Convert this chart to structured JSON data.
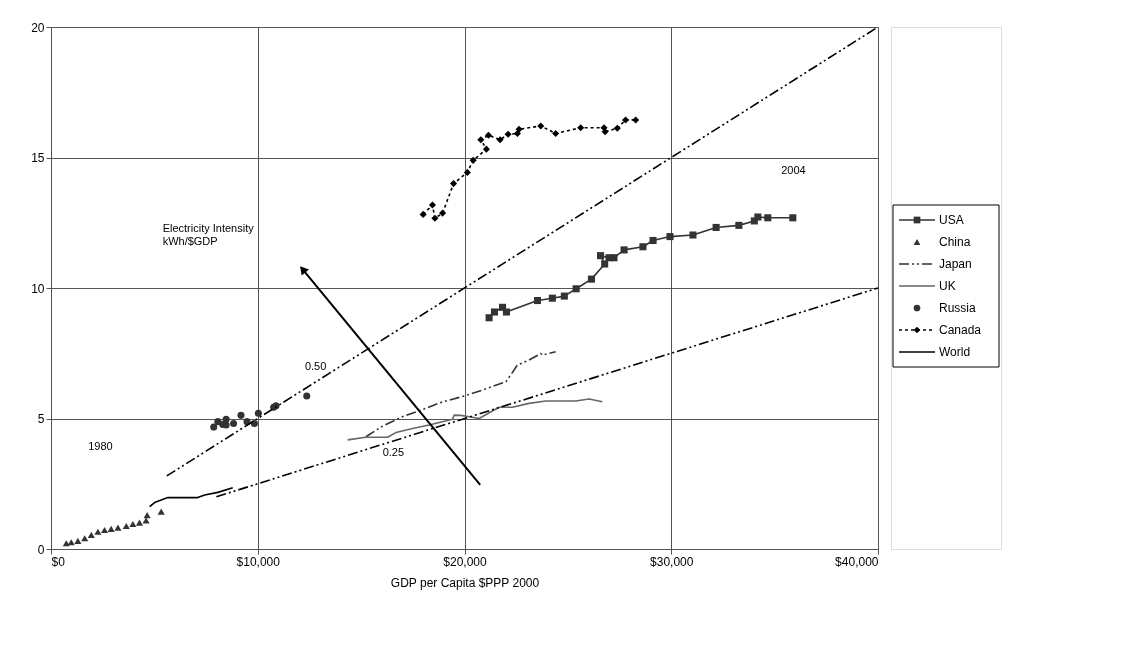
{
  "chart_data": {
    "type": "line",
    "xlabel": "GDP per Capita $PPP 2000",
    "xlim": [
      0,
      40000
    ],
    "ylim": [
      0,
      20
    ],
    "xticks": [
      {
        "value": 0,
        "label": "$0"
      },
      {
        "value": 10000,
        "label": "$10,000"
      },
      {
        "value": 20000,
        "label": "$20,000"
      },
      {
        "value": 30000,
        "label": "$30,000"
      },
      {
        "value": 40000,
        "label": "$40,000"
      }
    ],
    "yticks": [
      0,
      5,
      10,
      15,
      20
    ],
    "grid": true,
    "legend": "right",
    "series": [
      {
        "name": "USA",
        "color": "#333333",
        "marker": "square",
        "line_style": "solid",
        "x": [
          21190,
          21450,
          21840,
          22030,
          23530,
          24250,
          24830,
          25400,
          26140,
          26780,
          26580,
          26990,
          27230,
          27720,
          28630,
          29120,
          29940,
          31050,
          32170,
          33270,
          34020,
          34190,
          34670,
          35880
        ],
        "values": [
          8.86,
          9.08,
          9.26,
          9.08,
          9.52,
          9.61,
          9.69,
          9.97,
          10.34,
          10.92,
          11.24,
          11.16,
          11.16,
          11.46,
          11.58,
          11.82,
          11.97,
          12.03,
          12.32,
          12.4,
          12.57,
          12.72,
          12.69,
          12.69
        ]
      },
      {
        "name": "China",
        "type": "scatter",
        "color": "#333333",
        "marker": "triangle",
        "x": [
          740,
          980,
          1300,
          1630,
          1950,
          2270,
          2590,
          2910,
          3240,
          3640,
          3960,
          4280,
          4600,
          4650,
          5330
        ],
        "values": [
          0.22,
          0.26,
          0.31,
          0.41,
          0.54,
          0.66,
          0.73,
          0.77,
          0.82,
          0.88,
          0.96,
          1.01,
          1.09,
          1.3,
          1.43
        ]
      },
      {
        "name": "Japan",
        "color": "#333333",
        "marker": "none",
        "line_style": "dashed",
        "x": [
          15230,
          16040,
          17000,
          18130,
          18940,
          19900,
          20870,
          22000,
          22240,
          22560,
          23120,
          23690,
          23770,
          24410
        ],
        "values": [
          4.3,
          4.71,
          5.07,
          5.39,
          5.64,
          5.84,
          6.09,
          6.41,
          6.67,
          7.05,
          7.24,
          7.49,
          7.43,
          7.56
        ]
      },
      {
        "name": "UK",
        "color": "#666666",
        "marker": "none",
        "line_style": "solid",
        "x": [
          14350,
          15230,
          16280,
          16680,
          17490,
          18290,
          19420,
          19500,
          19820,
          20230,
          20710,
          21190,
          21680,
          22320,
          23120,
          23930,
          25380,
          26020,
          26670
        ],
        "values": [
          4.18,
          4.28,
          4.28,
          4.46,
          4.62,
          4.75,
          4.97,
          5.13,
          5.12,
          5.07,
          5.0,
          5.22,
          5.43,
          5.43,
          5.58,
          5.67,
          5.67,
          5.75,
          5.64
        ]
      },
      {
        "name": "Russia",
        "type": "scatter",
        "color": "#333333",
        "marker": "circle",
        "x": [
          7870,
          8070,
          8310,
          8470,
          8470,
          8830,
          9190,
          9480,
          9840,
          10030,
          10770,
          10880,
          12370
        ],
        "values": [
          4.67,
          4.88,
          4.77,
          4.97,
          4.75,
          4.81,
          5.12,
          4.88,
          4.81,
          5.2,
          5.43,
          5.49,
          5.86
        ]
      },
      {
        "name": "Canada",
        "color": "#000000",
        "marker": "diamond",
        "line_style": "dotted",
        "x": [
          18000,
          18450,
          18570,
          18940,
          19470,
          20140,
          20420,
          21060,
          20790,
          21160,
          21720,
          22110,
          22560,
          22640,
          23690,
          24410,
          25620,
          26750,
          26800,
          27390,
          27790,
          28280
        ],
        "values": [
          12.82,
          13.18,
          12.67,
          12.87,
          14.0,
          14.43,
          14.89,
          15.32,
          15.68,
          15.85,
          15.68,
          15.89,
          15.92,
          16.08,
          16.21,
          15.92,
          16.14,
          16.14,
          15.99,
          16.12,
          16.44,
          16.44
        ]
      },
      {
        "name": "World",
        "color": "#000000",
        "marker": "none",
        "line_style": "solid",
        "x": [
          4770,
          5010,
          5650,
          7100,
          7430,
          8070,
          8790
        ],
        "values": [
          1.62,
          1.78,
          1.97,
          1.97,
          2.07,
          2.17,
          2.35
        ]
      },
      {
        "color": "#000000",
        "marker": "none",
        "line_style": "dashed",
        "x": [
          5600,
          40000
        ],
        "values": [
          2.8,
          20
        ]
      },
      {
        "color": "#000000",
        "marker": "none",
        "line_style": "dashed",
        "x": [
          8000,
          40000
        ],
        "values": [
          2,
          10
        ]
      }
    ],
    "annotations": [
      "Electricity Intensity\nkWh/$GDP",
      "0.50",
      "0.25",
      "1980",
      "2004"
    ]
  }
}
